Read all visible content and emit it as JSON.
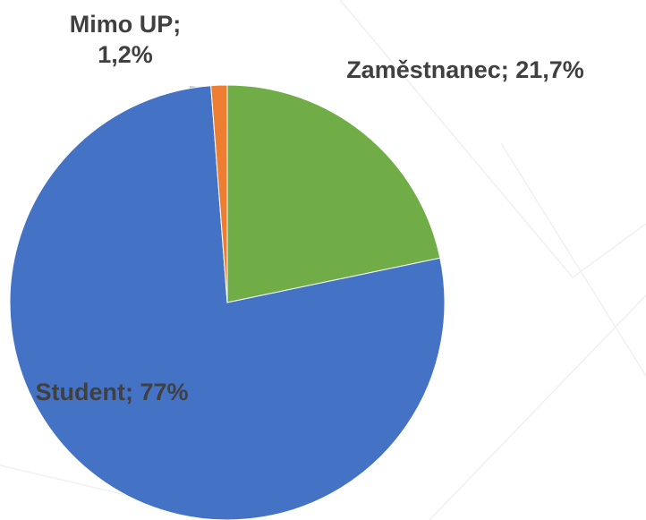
{
  "chart_data": {
    "type": "pie",
    "values": [
      21.7,
      77,
      1.2
    ],
    "value_labels": [
      "Zaměstnanec; 21,7%",
      "Student; 77%",
      "Mimo UP; 1,2%"
    ],
    "colors": [
      "#70ad47",
      "#4472c4",
      "#ed7d31"
    ]
  }
}
